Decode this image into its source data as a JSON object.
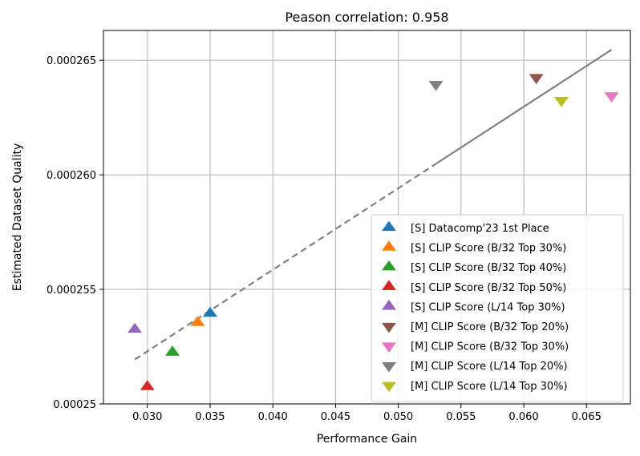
{
  "chart_data": {
    "type": "scatter",
    "title": "Peason correlation: 0.958",
    "xlabel": "Performance Gain",
    "ylabel": "Estimated Dataset Quality",
    "xlim": [
      0.0265,
      0.0685
    ],
    "ylim": [
      0.00025,
      0.0002663
    ],
    "grid": true,
    "legend_position": "lower-right",
    "xticks": [
      0.03,
      0.035,
      0.04,
      0.045,
      0.05,
      0.055,
      0.06,
      0.065
    ],
    "xtick_labels": [
      "0.030",
      "0.035",
      "0.040",
      "0.045",
      "0.050",
      "0.055",
      "0.060",
      "0.065"
    ],
    "yticks": [
      0.00025,
      0.000255,
      0.00026,
      0.000265
    ],
    "ytick_labels": [
      "0.00025",
      "0.000255",
      "0.000260",
      "0.000265"
    ],
    "fit_line": {
      "color": "#7f7f7f",
      "dashed_x": [
        0.029,
        0.053
      ],
      "dashed_y": [
        0.00025194,
        0.00026048
      ],
      "solid_x": [
        0.053,
        0.067
      ],
      "solid_y": [
        0.00026048,
        0.00026546
      ]
    },
    "series": [
      {
        "name": "[S] Datacomp'23 1st Place",
        "color": "#1f77b4",
        "marker": "triangle-up",
        "x": 0.035,
        "y": 0.00025395
      },
      {
        "name": "[S] CLIP Score (B/32 Top 30%)",
        "color": "#ff7f0e",
        "marker": "triangle-up",
        "x": 0.034,
        "y": 0.00025355
      },
      {
        "name": "[S] CLIP Score (B/32 Top 40%)",
        "color": "#2ca02c",
        "marker": "triangle-up",
        "x": 0.032,
        "y": 0.00025225
      },
      {
        "name": "[S] CLIP Score (B/32 Top 50%)",
        "color": "#d62728",
        "marker": "triangle-up",
        "x": 0.03,
        "y": 0.00025075
      },
      {
        "name": "[S] CLIP Score (L/14 Top 30%)",
        "color": "#9467bd",
        "marker": "triangle-up",
        "x": 0.029,
        "y": 0.00025325
      },
      {
        "name": "[M] CLIP Score (B/32 Top 20%)",
        "color": "#8c564b",
        "marker": "triangle-down",
        "x": 0.061,
        "y": 0.00026425
      },
      {
        "name": "[M] CLIP Score (B/32 Top 30%)",
        "color": "#e377c2",
        "marker": "triangle-down",
        "x": 0.067,
        "y": 0.00026345
      },
      {
        "name": "[M] CLIP Score (L/14 Top 20%)",
        "color": "#7f7f7f",
        "marker": "triangle-down",
        "x": 0.053,
        "y": 0.00026395
      },
      {
        "name": "[M] CLIP Score (L/14 Top 30%)",
        "color": "#bcbd22",
        "marker": "triangle-down",
        "x": 0.063,
        "y": 0.00026325
      }
    ]
  }
}
